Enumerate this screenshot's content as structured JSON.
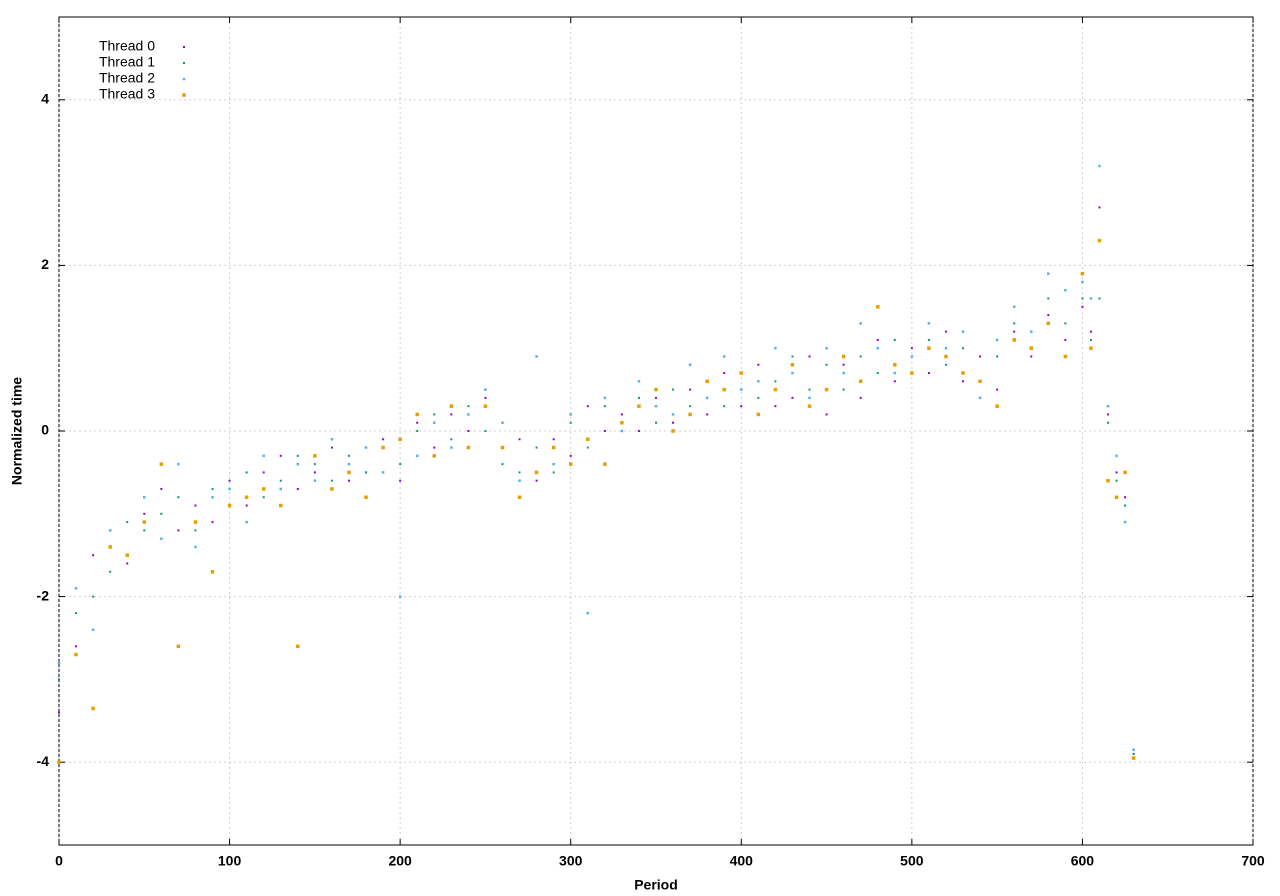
{
  "chart_data": {
    "type": "scatter",
    "xlabel": "Period",
    "ylabel": "Normalized time",
    "xlim": [
      0,
      700
    ],
    "ylim": [
      -5,
      5
    ],
    "xticks": [
      0,
      100,
      200,
      300,
      400,
      500,
      600,
      700
    ],
    "yticks": [
      -4,
      -2,
      0,
      2,
      4
    ],
    "grid": true,
    "legend": "top-left",
    "x": [
      0,
      10,
      20,
      30,
      40,
      50,
      60,
      70,
      80,
      90,
      100,
      110,
      120,
      130,
      140,
      150,
      160,
      170,
      180,
      190,
      200,
      210,
      220,
      230,
      240,
      250,
      260,
      270,
      280,
      290,
      300,
      310,
      320,
      330,
      340,
      350,
      360,
      370,
      380,
      390,
      400,
      410,
      420,
      430,
      440,
      450,
      460,
      470,
      480,
      490,
      500,
      510,
      520,
      530,
      540,
      550,
      560,
      570,
      580,
      590,
      600,
      605,
      610,
      615,
      620,
      625,
      630
    ],
    "series": [
      {
        "name": "Thread 0",
        "color": "#9400d3",
        "values": [
          -3.4,
          -2.6,
          -1.5,
          -1.4,
          -1.6,
          -1.0,
          -0.7,
          -1.2,
          -0.9,
          -1.1,
          -0.6,
          -0.9,
          -0.5,
          -0.3,
          -0.7,
          -0.5,
          -0.2,
          -0.6,
          -0.5,
          -0.1,
          -0.6,
          0.1,
          -0.2,
          0.2,
          0.0,
          0.4,
          -0.2,
          -0.1,
          -0.6,
          -0.1,
          -0.3,
          0.3,
          0.0,
          0.2,
          0.0,
          0.4,
          0.1,
          0.5,
          0.2,
          0.7,
          0.3,
          0.8,
          0.3,
          0.4,
          0.9,
          0.2,
          0.8,
          0.4,
          1.1,
          0.6,
          1.0,
          0.7,
          1.2,
          0.6,
          0.9,
          0.5,
          1.2,
          0.9,
          1.4,
          1.1,
          1.5,
          1.2,
          2.7,
          0.2,
          -0.5,
          -0.8,
          -3.9
        ]
      },
      {
        "name": "Thread 1",
        "color": "#009e73",
        "values": [
          -3.0,
          -2.2,
          -2.0,
          -1.7,
          -1.1,
          -1.2,
          -1.0,
          -0.8,
          -1.2,
          -0.7,
          -0.9,
          -0.5,
          -0.8,
          -0.6,
          -0.3,
          -0.4,
          -0.6,
          -0.3,
          -0.5,
          -0.2,
          -0.4,
          0.0,
          0.2,
          -0.1,
          0.3,
          0.0,
          -0.4,
          -0.5,
          -0.2,
          -0.5,
          0.1,
          -0.2,
          0.3,
          0.1,
          0.4,
          0.1,
          0.5,
          0.3,
          0.6,
          0.3,
          0.7,
          0.4,
          0.6,
          0.9,
          0.5,
          0.8,
          0.5,
          0.9,
          0.7,
          1.1,
          0.7,
          1.1,
          0.8,
          1.0,
          0.6,
          0.9,
          1.3,
          1.0,
          1.6,
          1.3,
          1.6,
          1.1,
          1.6,
          0.1,
          -0.6,
          -0.9,
          -3.9
        ]
      },
      {
        "name": "Thread 2",
        "color": "#56b4e9",
        "values": [
          -2.8,
          -1.9,
          -2.4,
          -1.2,
          -1.5,
          -0.8,
          -1.3,
          -0.4,
          -1.4,
          -0.8,
          -0.7,
          -1.1,
          -0.3,
          -0.7,
          -0.4,
          -0.6,
          -0.1,
          -0.4,
          -0.2,
          -0.5,
          -2.0,
          -0.3,
          0.1,
          -0.2,
          0.2,
          0.5,
          0.1,
          -0.6,
          0.9,
          -0.4,
          0.2,
          -2.2,
          0.4,
          0.0,
          0.6,
          0.3,
          0.2,
          0.8,
          0.4,
          0.9,
          0.5,
          0.6,
          1.0,
          0.7,
          0.4,
          1.0,
          0.7,
          1.3,
          1.0,
          0.7,
          0.9,
          1.3,
          1.0,
          1.2,
          0.4,
          1.1,
          1.5,
          1.2,
          1.9,
          1.7,
          1.8,
          1.6,
          3.2,
          0.3,
          -0.3,
          -1.1,
          -3.85
        ]
      },
      {
        "name": "Thread 3",
        "color": "#e69f00",
        "values": [
          -4.0,
          -2.7,
          -3.35,
          -1.4,
          -1.5,
          -1.1,
          -0.4,
          -2.6,
          -1.1,
          -1.7,
          -0.9,
          -0.8,
          -0.7,
          -0.9,
          -2.6,
          -0.3,
          -0.7,
          -0.5,
          -0.8,
          -0.2,
          -0.1,
          0.2,
          -0.3,
          0.3,
          -0.2,
          0.3,
          -0.2,
          -0.8,
          -0.5,
          -0.2,
          -0.4,
          -0.1,
          -0.4,
          0.1,
          0.3,
          0.5,
          0.0,
          0.2,
          0.6,
          0.5,
          0.7,
          0.2,
          0.5,
          0.8,
          0.3,
          0.5,
          0.9,
          0.6,
          1.5,
          0.8,
          0.7,
          1.0,
          0.9,
          0.7,
          0.6,
          0.3,
          1.1,
          1.0,
          1.3,
          0.9,
          1.9,
          1.0,
          2.3,
          -0.6,
          -0.8,
          -0.5,
          -3.95
        ]
      }
    ]
  }
}
